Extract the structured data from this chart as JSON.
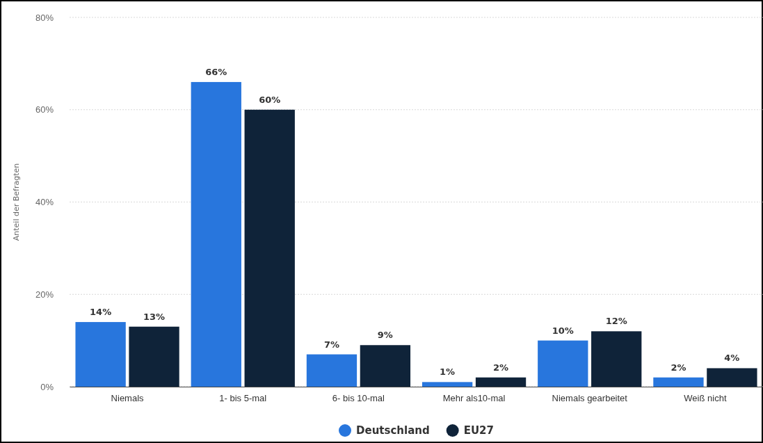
{
  "chart_data": {
    "type": "bar",
    "ylabel": "Anteil der Befragten",
    "categories": [
      "Niemals",
      "1- bis 5-mal",
      "6- bis 10-mal",
      "Mehr als10-mal",
      "Niemals gearbeitet",
      "Weiß nicht"
    ],
    "series": [
      {
        "name": "Deutschland",
        "color": "#2876dd",
        "values": [
          14,
          66,
          7,
          1,
          10,
          2
        ],
        "value_labels": [
          "14%",
          "66%",
          "7%",
          "1%",
          "10%",
          "2%"
        ]
      },
      {
        "name": "EU27",
        "color": "#0f2339",
        "values": [
          13,
          60,
          9,
          2,
          12,
          4
        ],
        "value_labels": [
          "13%",
          "60%",
          "9%",
          "2%",
          "12%",
          "4%"
        ]
      }
    ],
    "ylim": [
      0,
      80
    ],
    "yticks": [
      {
        "value": 0,
        "label": "0%"
      },
      {
        "value": 20,
        "label": "20%"
      },
      {
        "value": 40,
        "label": "40%"
      },
      {
        "value": 60,
        "label": "60%"
      },
      {
        "value": 80,
        "label": "80%"
      }
    ],
    "grid": "y",
    "legend": "bottom"
  }
}
